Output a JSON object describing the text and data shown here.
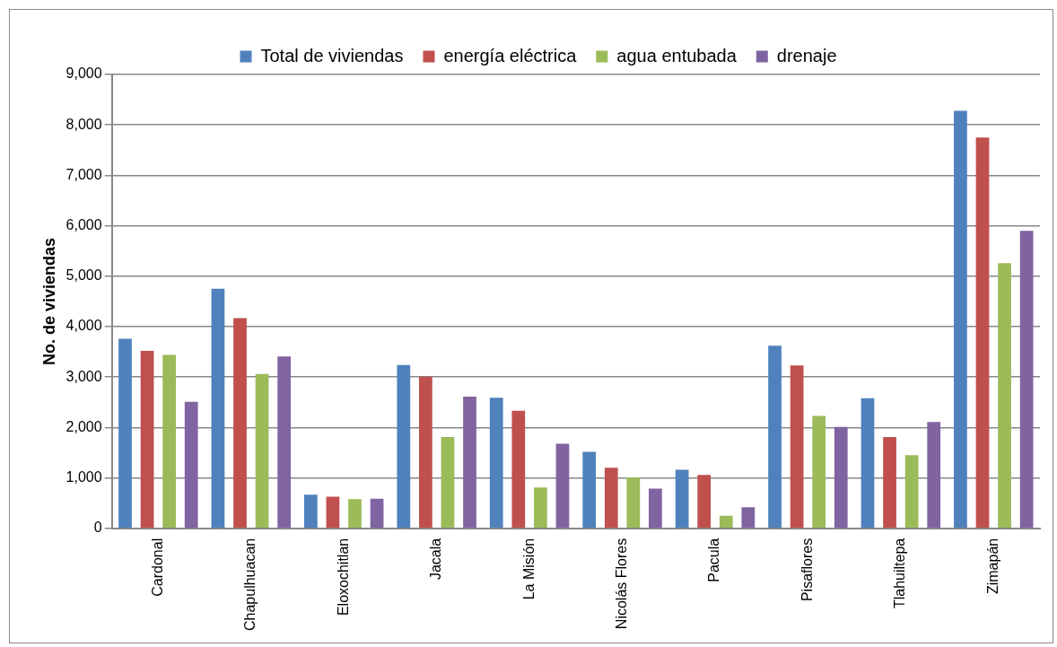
{
  "chart_data": {
    "type": "bar",
    "ylabel": "No. de viviendas",
    "categories": [
      "Cardonal",
      "Chapulhuacan",
      "Eloxochitlan",
      "Jacala",
      "La Misión",
      "Nicolás Flores",
      "Pacula",
      "Pisaflores",
      "Tlahuiltepa",
      "Zimapán"
    ],
    "series": [
      {
        "name": "Total de viviendas",
        "color": "#4f81bd",
        "values": [
          3760,
          4750,
          670,
          3240,
          2590,
          1520,
          1160,
          3620,
          2580,
          8280
        ]
      },
      {
        "name": "energía eléctrica",
        "color": "#c0504d",
        "values": [
          3520,
          4170,
          630,
          3010,
          2330,
          1200,
          1060,
          3230,
          1810,
          7750
        ]
      },
      {
        "name": "agua entubada",
        "color": "#9bbb59",
        "values": [
          3440,
          3060,
          580,
          1810,
          810,
          1010,
          250,
          2230,
          1450,
          5260
        ]
      },
      {
        "name": "drenaje",
        "color": "#8064a2",
        "values": [
          2510,
          3410,
          590,
          2610,
          1680,
          790,
          420,
          2010,
          2110,
          5900
        ]
      }
    ],
    "ylim": [
      0,
      9000
    ],
    "yticks": [
      0,
      {
        "value": 1000,
        "label": "1,000"
      },
      {
        "value": 2000,
        "label": "2,000"
      },
      {
        "value": 3000,
        "label": "3,000"
      },
      {
        "value": 4000,
        "label": "4,000"
      },
      {
        "value": 5000,
        "label": "5,000"
      },
      {
        "value": 6000,
        "label": "6,000"
      },
      {
        "value": 7000,
        "label": "7,000"
      },
      {
        "value": 8000,
        "label": "8,000"
      },
      {
        "value": 9000,
        "label": "9,000"
      }
    ],
    "grid": "y",
    "legend": "top"
  }
}
